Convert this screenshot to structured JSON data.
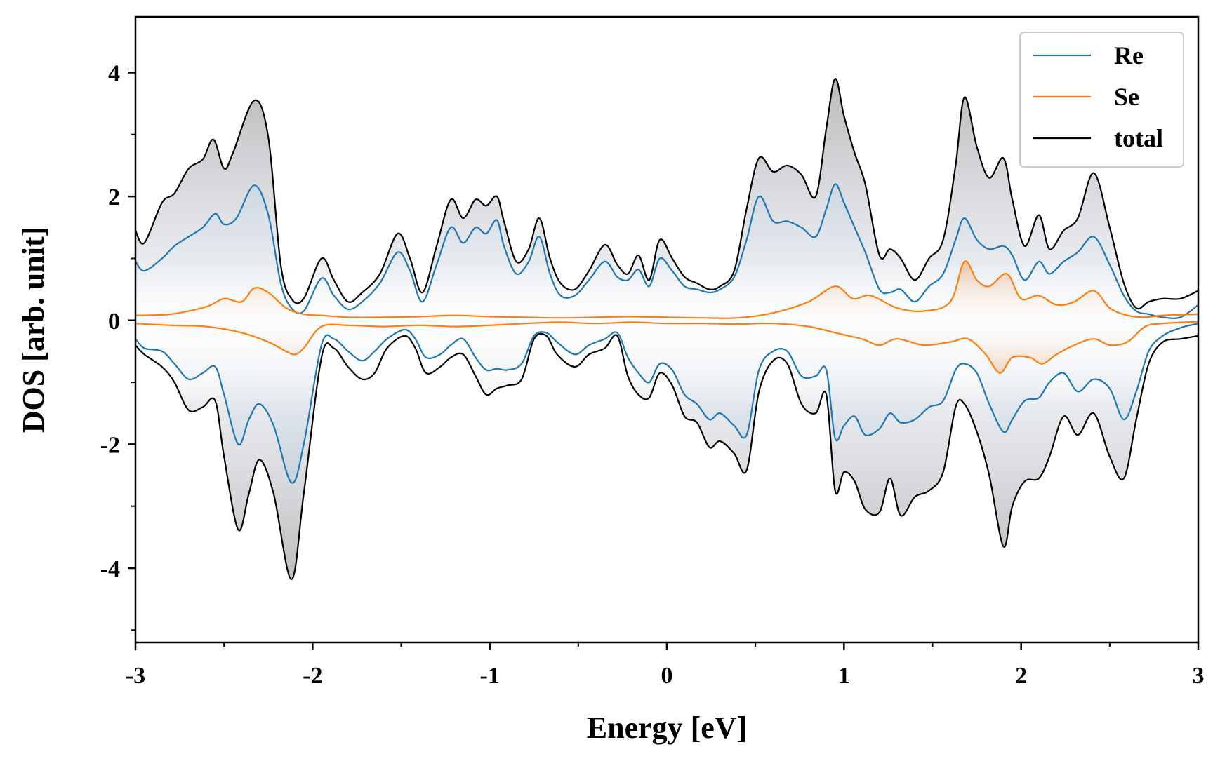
{
  "chart_data": {
    "type": "line",
    "xlabel": "Energy [eV]",
    "ylabel": "DOS [arb. unit]",
    "xlim": [
      -3,
      3
    ],
    "ylim": [
      -5.2,
      4.9
    ],
    "xticks": [
      -3,
      -2,
      -1,
      0,
      1,
      2,
      3
    ],
    "yticks": [
      -4,
      -2,
      0,
      2,
      4
    ],
    "xticks_minor_step": 0.5,
    "yticks_minor_step": 1,
    "legend_position": "top-right",
    "grid": false,
    "fill_between_curve_and_zero": true,
    "colors": {
      "Re": "#1f77b4",
      "Se": "#ff7f0e",
      "total": "#000000",
      "fill": "#a8a8a8",
      "fill_mid": "#c9d6e3",
      "fill_se": "#f0b07a"
    },
    "series": [
      {
        "name": "Re",
        "channel": "up",
        "x": [
          -3.0,
          -2.95,
          -2.85,
          -2.78,
          -2.7,
          -2.62,
          -2.55,
          -2.5,
          -2.43,
          -2.33,
          -2.25,
          -2.18,
          -2.12,
          -2.05,
          -1.95,
          -1.88,
          -1.8,
          -1.72,
          -1.62,
          -1.52,
          -1.45,
          -1.38,
          -1.3,
          -1.22,
          -1.15,
          -1.08,
          -1.02,
          -0.96,
          -0.92,
          -0.85,
          -0.78,
          -0.72,
          -0.66,
          -0.6,
          -0.52,
          -0.44,
          -0.35,
          -0.28,
          -0.22,
          -0.16,
          -0.1,
          -0.04,
          0.03,
          0.1,
          0.17,
          0.24,
          0.3,
          0.38,
          0.45,
          0.52,
          0.6,
          0.68,
          0.76,
          0.84,
          0.9,
          0.95,
          1.0,
          1.06,
          1.12,
          1.2,
          1.26,
          1.32,
          1.4,
          1.48,
          1.56,
          1.63,
          1.68,
          1.75,
          1.82,
          1.9,
          1.95,
          2.02,
          2.1,
          2.16,
          2.24,
          2.32,
          2.41,
          2.5,
          2.58,
          2.65,
          2.72,
          2.8,
          2.9,
          3.0
        ],
        "y": [
          0.95,
          0.8,
          1.0,
          1.2,
          1.35,
          1.5,
          1.72,
          1.55,
          1.65,
          2.18,
          1.7,
          0.6,
          0.2,
          0.15,
          0.68,
          0.4,
          0.18,
          0.3,
          0.6,
          1.1,
          0.8,
          0.3,
          0.9,
          1.5,
          1.25,
          1.5,
          1.4,
          1.62,
          1.2,
          0.75,
          0.95,
          1.35,
          0.75,
          0.4,
          0.4,
          0.65,
          0.95,
          0.7,
          0.65,
          0.82,
          0.55,
          1.0,
          0.8,
          0.55,
          0.5,
          0.45,
          0.5,
          0.7,
          1.3,
          2.0,
          1.6,
          1.6,
          1.5,
          1.35,
          1.8,
          2.2,
          1.9,
          1.5,
          1.1,
          0.5,
          0.45,
          0.5,
          0.3,
          0.55,
          0.75,
          1.3,
          1.65,
          1.3,
          1.15,
          1.2,
          1.05,
          0.65,
          0.95,
          0.75,
          0.95,
          1.1,
          1.35,
          0.9,
          0.4,
          0.15,
          0.1,
          0.05,
          0.05,
          0.25
        ]
      },
      {
        "name": "Re",
        "channel": "down",
        "x": [
          -3.0,
          -2.95,
          -2.85,
          -2.78,
          -2.7,
          -2.62,
          -2.55,
          -2.5,
          -2.42,
          -2.36,
          -2.3,
          -2.22,
          -2.12,
          -2.05,
          -1.95,
          -1.88,
          -1.8,
          -1.72,
          -1.65,
          -1.58,
          -1.48,
          -1.42,
          -1.36,
          -1.28,
          -1.22,
          -1.15,
          -1.08,
          -1.02,
          -0.96,
          -0.9,
          -0.82,
          -0.75,
          -0.68,
          -0.62,
          -0.52,
          -0.44,
          -0.35,
          -0.28,
          -0.22,
          -0.16,
          -0.1,
          -0.04,
          0.03,
          0.1,
          0.17,
          0.24,
          0.3,
          0.38,
          0.45,
          0.52,
          0.6,
          0.68,
          0.76,
          0.84,
          0.9,
          0.95,
          1.0,
          1.06,
          1.12,
          1.2,
          1.26,
          1.32,
          1.4,
          1.48,
          1.56,
          1.63,
          1.68,
          1.75,
          1.82,
          1.9,
          1.95,
          2.02,
          2.1,
          2.16,
          2.24,
          2.32,
          2.41,
          2.5,
          2.58,
          2.65,
          2.72,
          2.8,
          2.9,
          3.0
        ],
        "y": [
          -0.3,
          -0.45,
          -0.5,
          -0.7,
          -0.95,
          -0.85,
          -0.75,
          -1.2,
          -2.0,
          -1.6,
          -1.35,
          -1.7,
          -2.62,
          -2.0,
          -0.4,
          -0.3,
          -0.5,
          -0.65,
          -0.5,
          -0.3,
          -0.15,
          -0.3,
          -0.6,
          -0.55,
          -0.4,
          -0.3,
          -0.6,
          -0.8,
          -0.78,
          -0.8,
          -0.7,
          -0.25,
          -0.2,
          -0.35,
          -0.55,
          -0.4,
          -0.3,
          -0.2,
          -0.6,
          -0.85,
          -1.0,
          -0.7,
          -0.8,
          -1.2,
          -1.35,
          -1.6,
          -1.5,
          -1.7,
          -1.85,
          -0.8,
          -0.5,
          -0.5,
          -0.9,
          -0.9,
          -0.8,
          -1.9,
          -1.7,
          -1.55,
          -1.85,
          -1.75,
          -1.5,
          -1.65,
          -1.6,
          -1.4,
          -1.3,
          -0.8,
          -0.7,
          -0.85,
          -1.35,
          -1.8,
          -1.6,
          -1.3,
          -1.25,
          -1.0,
          -0.85,
          -1.15,
          -0.95,
          -1.1,
          -1.6,
          -1.15,
          -0.5,
          -0.25,
          -0.12,
          -0.05
        ]
      },
      {
        "name": "Se",
        "channel": "up",
        "x": [
          -3.0,
          -2.8,
          -2.6,
          -2.5,
          -2.4,
          -2.33,
          -2.25,
          -2.15,
          -2.05,
          -1.95,
          -1.8,
          -1.6,
          -1.4,
          -1.2,
          -1.0,
          -0.8,
          -0.6,
          -0.4,
          -0.2,
          0.0,
          0.2,
          0.4,
          0.6,
          0.8,
          0.95,
          1.05,
          1.15,
          1.3,
          1.45,
          1.6,
          1.68,
          1.75,
          1.82,
          1.92,
          2.0,
          2.1,
          2.2,
          2.3,
          2.41,
          2.5,
          2.6,
          2.7,
          2.8,
          3.0
        ],
        "y": [
          0.08,
          0.1,
          0.22,
          0.35,
          0.3,
          0.52,
          0.45,
          0.2,
          0.1,
          0.08,
          0.05,
          0.05,
          0.06,
          0.08,
          0.06,
          0.05,
          0.04,
          0.05,
          0.06,
          0.05,
          0.04,
          0.04,
          0.12,
          0.3,
          0.55,
          0.35,
          0.4,
          0.2,
          0.15,
          0.3,
          0.95,
          0.65,
          0.55,
          0.75,
          0.35,
          0.4,
          0.25,
          0.3,
          0.48,
          0.2,
          0.08,
          0.05,
          0.08,
          0.1
        ]
      },
      {
        "name": "Se",
        "channel": "down",
        "x": [
          -3.0,
          -2.8,
          -2.6,
          -2.4,
          -2.25,
          -2.15,
          -2.1,
          -2.05,
          -1.95,
          -1.8,
          -1.6,
          -1.4,
          -1.2,
          -1.0,
          -0.8,
          -0.6,
          -0.4,
          -0.2,
          0.0,
          0.2,
          0.4,
          0.6,
          0.8,
          0.95,
          1.1,
          1.2,
          1.3,
          1.45,
          1.6,
          1.7,
          1.8,
          1.88,
          1.95,
          2.05,
          2.12,
          2.2,
          2.3,
          2.41,
          2.5,
          2.6,
          2.7,
          2.8,
          3.0
        ],
        "y": [
          -0.05,
          -0.08,
          -0.1,
          -0.2,
          -0.35,
          -0.5,
          -0.55,
          -0.45,
          -0.1,
          -0.08,
          -0.1,
          -0.08,
          -0.1,
          -0.08,
          -0.05,
          -0.03,
          -0.05,
          -0.03,
          -0.05,
          -0.05,
          -0.06,
          -0.05,
          -0.1,
          -0.2,
          -0.3,
          -0.4,
          -0.3,
          -0.4,
          -0.35,
          -0.3,
          -0.55,
          -0.85,
          -0.6,
          -0.6,
          -0.7,
          -0.55,
          -0.4,
          -0.3,
          -0.4,
          -0.35,
          -0.1,
          -0.05,
          -0.02
        ]
      },
      {
        "name": "total",
        "channel": "up",
        "x": [
          -3.0,
          -2.95,
          -2.85,
          -2.78,
          -2.7,
          -2.62,
          -2.56,
          -2.5,
          -2.45,
          -2.33,
          -2.25,
          -2.18,
          -2.12,
          -2.05,
          -1.95,
          -1.88,
          -1.8,
          -1.72,
          -1.62,
          -1.52,
          -1.45,
          -1.38,
          -1.3,
          -1.22,
          -1.15,
          -1.08,
          -1.02,
          -0.96,
          -0.92,
          -0.85,
          -0.78,
          -0.72,
          -0.66,
          -0.6,
          -0.52,
          -0.44,
          -0.35,
          -0.28,
          -0.22,
          -0.16,
          -0.1,
          -0.04,
          0.03,
          0.1,
          0.17,
          0.24,
          0.3,
          0.38,
          0.45,
          0.52,
          0.6,
          0.68,
          0.76,
          0.84,
          0.9,
          0.95,
          1.0,
          1.06,
          1.12,
          1.2,
          1.26,
          1.32,
          1.4,
          1.48,
          1.56,
          1.63,
          1.68,
          1.75,
          1.82,
          1.9,
          1.95,
          2.02,
          2.1,
          2.16,
          2.24,
          2.32,
          2.41,
          2.5,
          2.58,
          2.65,
          2.72,
          2.8,
          2.9,
          3.0
        ],
        "y": [
          1.45,
          1.25,
          1.9,
          2.05,
          2.45,
          2.6,
          2.92,
          2.45,
          2.7,
          3.55,
          2.95,
          0.9,
          0.35,
          0.35,
          1.0,
          0.65,
          0.3,
          0.45,
          0.75,
          1.4,
          1.0,
          0.45,
          1.2,
          1.95,
          1.65,
          1.95,
          1.85,
          2.0,
          1.6,
          0.95,
          1.15,
          1.65,
          1.0,
          0.6,
          0.5,
          0.8,
          1.22,
          0.9,
          0.75,
          1.05,
          0.65,
          1.3,
          1.0,
          0.7,
          0.6,
          0.5,
          0.55,
          0.8,
          1.8,
          2.62,
          2.4,
          2.5,
          2.35,
          2.0,
          3.1,
          3.9,
          3.3,
          2.7,
          2.2,
          1.05,
          1.15,
          1.0,
          0.65,
          1.0,
          1.3,
          2.5,
          3.6,
          2.8,
          2.3,
          2.62,
          1.95,
          1.2,
          1.7,
          1.15,
          1.45,
          1.65,
          2.38,
          1.5,
          0.6,
          0.2,
          0.3,
          0.35,
          0.35,
          0.48
        ]
      },
      {
        "name": "total",
        "channel": "down",
        "x": [
          -3.0,
          -2.95,
          -2.85,
          -2.78,
          -2.7,
          -2.62,
          -2.55,
          -2.5,
          -2.42,
          -2.36,
          -2.3,
          -2.22,
          -2.12,
          -2.05,
          -1.95,
          -1.88,
          -1.8,
          -1.72,
          -1.65,
          -1.58,
          -1.48,
          -1.42,
          -1.36,
          -1.28,
          -1.22,
          -1.15,
          -1.08,
          -1.02,
          -0.96,
          -0.9,
          -0.82,
          -0.75,
          -0.68,
          -0.62,
          -0.52,
          -0.44,
          -0.35,
          -0.28,
          -0.22,
          -0.16,
          -0.1,
          -0.04,
          0.03,
          0.1,
          0.17,
          0.24,
          0.3,
          0.38,
          0.45,
          0.52,
          0.6,
          0.68,
          0.76,
          0.84,
          0.9,
          0.95,
          1.0,
          1.06,
          1.12,
          1.2,
          1.26,
          1.32,
          1.4,
          1.48,
          1.56,
          1.63,
          1.68,
          1.75,
          1.82,
          1.9,
          1.95,
          2.02,
          2.1,
          2.16,
          2.24,
          2.32,
          2.41,
          2.5,
          2.58,
          2.65,
          2.72,
          2.8,
          2.9,
          3.0
        ],
        "y": [
          -0.4,
          -0.55,
          -0.75,
          -1.0,
          -1.45,
          -1.4,
          -1.3,
          -2.2,
          -3.38,
          -2.8,
          -2.25,
          -2.8,
          -4.18,
          -2.8,
          -0.6,
          -0.45,
          -0.75,
          -0.95,
          -0.85,
          -0.45,
          -0.25,
          -0.45,
          -0.85,
          -0.75,
          -0.6,
          -0.55,
          -0.9,
          -1.2,
          -1.1,
          -1.05,
          -0.95,
          -0.3,
          -0.25,
          -0.55,
          -0.75,
          -0.55,
          -0.45,
          -0.25,
          -0.9,
          -1.2,
          -1.25,
          -0.85,
          -1.05,
          -1.55,
          -1.65,
          -2.05,
          -1.95,
          -2.15,
          -2.42,
          -1.15,
          -0.65,
          -0.7,
          -1.35,
          -1.5,
          -1.2,
          -2.75,
          -2.45,
          -2.6,
          -3.05,
          -3.1,
          -2.55,
          -3.15,
          -2.85,
          -2.75,
          -2.45,
          -1.4,
          -1.35,
          -1.8,
          -2.5,
          -3.65,
          -3.0,
          -2.6,
          -2.55,
          -2.2,
          -1.55,
          -1.85,
          -1.5,
          -2.2,
          -2.55,
          -1.6,
          -0.7,
          -0.35,
          -0.3,
          -0.25
        ]
      }
    ]
  }
}
